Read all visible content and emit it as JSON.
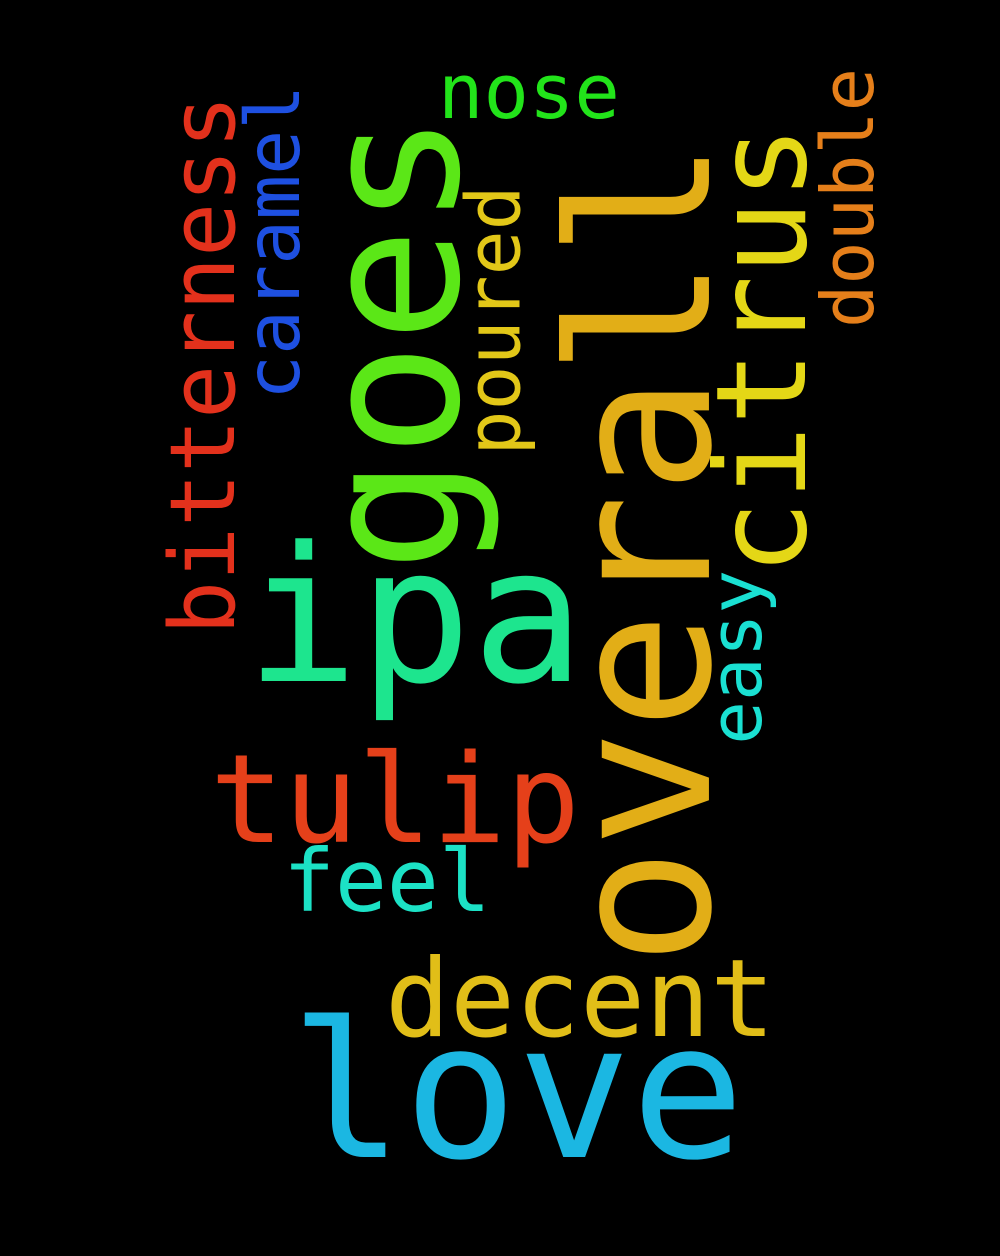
{
  "background": "#000000",
  "words": {
    "love": {
      "text": "love",
      "color": "#1BB7E2",
      "orientation": "horizontal"
    },
    "overall": {
      "text": "overall",
      "color": "#E2AE17",
      "orientation": "vertical"
    },
    "ipa": {
      "text": "ipa",
      "color": "#1DE58E",
      "orientation": "horizontal"
    },
    "goes": {
      "text": "goes",
      "color": "#5BE717",
      "orientation": "vertical"
    },
    "tulip": {
      "text": "tulip",
      "color": "#E5401A",
      "orientation": "horizontal"
    },
    "decent": {
      "text": "decent",
      "color": "#E1BE18",
      "orientation": "horizontal"
    },
    "citrus": {
      "text": "citrus",
      "color": "#E4D716",
      "orientation": "vertical"
    },
    "bitterness": {
      "text": "bitterness",
      "color": "#E3311C",
      "orientation": "vertical"
    },
    "feel": {
      "text": "feel",
      "color": "#1CE2C6",
      "orientation": "horizontal"
    },
    "caramel": {
      "text": "caramel",
      "color": "#1E50E1",
      "orientation": "vertical"
    },
    "nose": {
      "text": "nose",
      "color": "#22E41A",
      "orientation": "horizontal"
    },
    "poured": {
      "text": "poured",
      "color": "#E2C718",
      "orientation": "vertical"
    },
    "double": {
      "text": "double",
      "color": "#E57F1A",
      "orientation": "vertical"
    },
    "easy": {
      "text": "easy",
      "color": "#1AE0D2",
      "orientation": "vertical"
    }
  }
}
